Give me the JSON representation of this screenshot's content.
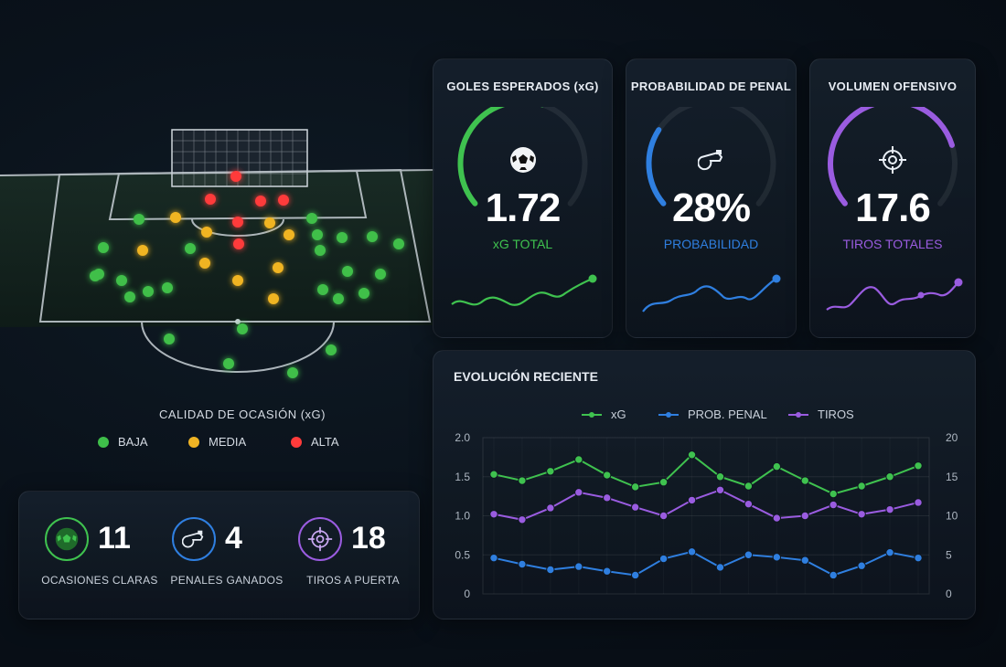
{
  "heatmap": {
    "legend_title": "CALIDAD DE OCASIÓN (xG)",
    "legend": [
      {
        "label": "BAJA",
        "color": "#3fbf4a"
      },
      {
        "label": "MEDIA",
        "color": "#f0b424"
      },
      {
        "label": "ALTA",
        "color": "#ff3b3b"
      }
    ]
  },
  "kpis": [
    {
      "title": "GOLES ESPERADOS (xG)",
      "value": "1.72",
      "subtitle": "xG TOTAL",
      "color": "#3fc24f",
      "icon": "soccer-ball-icon",
      "gauge_fraction": 0.57
    },
    {
      "title": "PROBABILIDAD DE PENAL",
      "value": "28%",
      "subtitle": "PROBABILIDAD",
      "color": "#2f7fe0",
      "icon": "whistle-icon",
      "gauge_fraction": 0.28
    },
    {
      "title": "VOLUMEN OFENSIVO",
      "value": "17.6",
      "subtitle": "TIROS TOTALES",
      "color": "#9a5ce0",
      "icon": "target-icon",
      "gauge_fraction": 0.78
    }
  ],
  "stats": [
    {
      "value": "11",
      "label": "OCASIONES CLARAS",
      "color": "#3fc24f",
      "icon": "soccer-ball-icon"
    },
    {
      "value": "4",
      "label": "PENALES GANADOS",
      "color": "#2f7fe0",
      "icon": "whistle-icon"
    },
    {
      "value": "18",
      "label": "TIROS A PUERTA",
      "color": "#9a5ce0",
      "icon": "target-icon"
    }
  ],
  "chart": {
    "title": "EVOLUCIÓN RECIENTE",
    "left_ticks": [
      "0",
      "0.5",
      "1.0",
      "1.5",
      "2.0"
    ],
    "right_ticks": [
      "0",
      "5",
      "10",
      "15",
      "20"
    ]
  },
  "chart_data": {
    "type": "line",
    "title": "EVOLUCIÓN RECIENTE",
    "x": [
      1,
      2,
      3,
      4,
      5,
      6,
      7,
      8,
      9,
      10,
      11,
      12,
      13,
      14,
      15,
      16
    ],
    "ylim_left": [
      0,
      2.0
    ],
    "ylim_right": [
      0,
      20
    ],
    "grid": true,
    "legend_position": "top",
    "series": [
      {
        "name": "xG",
        "axis": "left",
        "color": "#3fc24f",
        "values": [
          1.53,
          1.45,
          1.57,
          1.72,
          1.52,
          1.37,
          1.43,
          1.78,
          1.5,
          1.38,
          1.63,
          1.45,
          1.28,
          1.38,
          1.5,
          1.64
        ]
      },
      {
        "name": "PROB. PENAL",
        "axis": "left",
        "color": "#2f7fe0",
        "values": [
          0.46,
          0.38,
          0.31,
          0.35,
          0.29,
          0.24,
          0.45,
          0.54,
          0.34,
          0.5,
          0.47,
          0.43,
          0.24,
          0.36,
          0.53,
          0.46
        ]
      },
      {
        "name": "TIROS",
        "axis": "right",
        "color": "#9a5ce0",
        "values": [
          10.2,
          9.5,
          11.0,
          13.0,
          12.3,
          11.1,
          10.0,
          12.0,
          13.3,
          11.5,
          9.7,
          10.0,
          11.4,
          10.2,
          10.8,
          11.7
        ]
      }
    ]
  }
}
